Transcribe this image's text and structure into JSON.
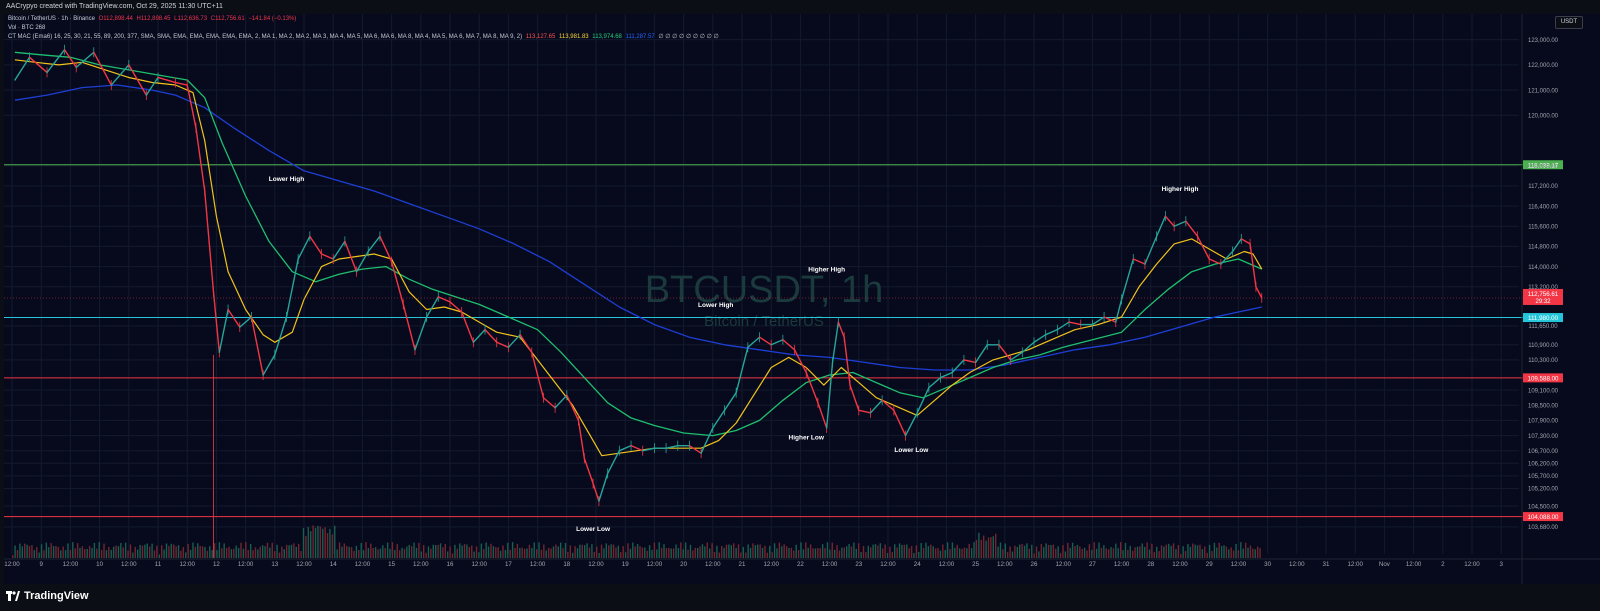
{
  "header": {
    "created_text": "AACrypyo created with TradingView.com, Oct 29, 2025 11:30 UTC+11"
  },
  "legend": {
    "symbol": "Bitcoin / TetherUS · 1h · Binance",
    "open": "O112,898.44",
    "high": "H112,898.45",
    "low": "L112,636.73",
    "close": "C112,756.61",
    "change": "−141.84 (−0.13%)",
    "vol": "Vol · BTC 268",
    "indicator": "CT MAC (Ema6) 16, 25, 30, 21, 55, 89, 200, 377, SMA, SMA, EMA, EMA, EMA, EMA, EMA, 2, MA 1, MA 2, MA 2, MA 3, MA 4, MA 5, MA 6, MA 6, MA 8, MA 4, MA 5, MA 6, MA 7, MA 8, MA 9, 2)",
    "ind_values": [
      "113,127.65",
      "113,981.83",
      "113,974.68",
      "111,287.57"
    ],
    "ind_colors": [
      "#ff5252",
      "#fdd835",
      "#26d07c",
      "#2962ff"
    ],
    "ind_empty": "∅ ∅ ∅ ∅ ∅ ∅ ∅ ∅ ∅"
  },
  "currency_button": "USDT",
  "watermark": {
    "title": "BTCUSDT, 1h",
    "subtitle": "Bitcoin / TetherUS"
  },
  "brand": "TradingView",
  "chart_data": {
    "type": "line",
    "y_axis_ticks": [
      "123,000.00",
      "122,000.00",
      "121,000.00",
      "120,000.00",
      "118,000.00",
      "117,200.00",
      "116,400.00",
      "115,600.00",
      "114,800.00",
      "114,000.00",
      "113,200.00",
      "111,650.00",
      "110,900.00",
      "110,300.00",
      "109,100.00",
      "108,500.00",
      "107,900.00",
      "107,300.00",
      "106,700.00",
      "106,200.00",
      "105,700.00",
      "105,200.00",
      "104,500.00",
      "103,680.00"
    ],
    "y_axis_values": [
      123000,
      122000,
      121000,
      120000,
      118000,
      117200,
      116400,
      115600,
      114800,
      114000,
      113200,
      111650,
      110900,
      110300,
      109100,
      108500,
      107900,
      107300,
      106700,
      106200,
      105700,
      105200,
      104500,
      103680
    ],
    "ylim": [
      103000,
      123700
    ],
    "x_axis_labels": [
      "12:00",
      "9",
      "12:00",
      "10",
      "12:00",
      "11",
      "12:00",
      "12",
      "12:00",
      "13",
      "12:00",
      "14",
      "12:00",
      "15",
      "12:00",
      "16",
      "12:00",
      "17",
      "12:00",
      "18",
      "12:00",
      "19",
      "12:00",
      "20",
      "12:00",
      "21",
      "12:00",
      "22",
      "12:00",
      "23",
      "12:00",
      "24",
      "12:00",
      "25",
      "12:00",
      "26",
      "12:00",
      "27",
      "12:00",
      "28",
      "12:00",
      "29",
      "12:00",
      "30",
      "12:00",
      "31",
      "12:00",
      "Nov",
      "12:00",
      "2",
      "12:00",
      "3"
    ],
    "x_range_days": [
      8.0,
      3.5
    ],
    "horizontal_levels": [
      {
        "value": 118039.17,
        "label": "118,039.17",
        "color": "#4caf50"
      },
      {
        "value": 111980.0,
        "label": "111,980.00",
        "color": "#26c6da"
      },
      {
        "value": 109588.0,
        "label": "109,588.00",
        "color": "#f23645"
      },
      {
        "value": 104088.0,
        "label": "104,088.00",
        "color": "#f23645"
      }
    ],
    "last_price": {
      "value": 112756.61,
      "label": "112,756.61",
      "countdown": "29:32",
      "color": "#f23645"
    },
    "price_path": [
      [
        8.05,
        121400
      ],
      [
        8.3,
        122300
      ],
      [
        8.6,
        121700
      ],
      [
        8.9,
        122600
      ],
      [
        9.1,
        121900
      ],
      [
        9.4,
        122500
      ],
      [
        9.7,
        121200
      ],
      [
        10.0,
        122000
      ],
      [
        10.3,
        120800
      ],
      [
        10.5,
        121500
      ],
      [
        10.8,
        121300
      ],
      [
        11.0,
        121200
      ],
      [
        11.15,
        119500
      ],
      [
        11.3,
        117000
      ],
      [
        11.45,
        113000
      ],
      [
        11.55,
        110600
      ],
      [
        11.7,
        112300
      ],
      [
        11.9,
        111600
      ],
      [
        12.1,
        112000
      ],
      [
        12.3,
        109700
      ],
      [
        12.5,
        110500
      ],
      [
        12.7,
        112000
      ],
      [
        12.9,
        114300
      ],
      [
        13.1,
        115200
      ],
      [
        13.3,
        114500
      ],
      [
        13.5,
        114300
      ],
      [
        13.7,
        115000
      ],
      [
        13.9,
        113800
      ],
      [
        14.1,
        114600
      ],
      [
        14.3,
        115200
      ],
      [
        14.5,
        114200
      ],
      [
        14.7,
        112500
      ],
      [
        14.9,
        110700
      ],
      [
        15.1,
        112000
      ],
      [
        15.3,
        112800
      ],
      [
        15.5,
        112600
      ],
      [
        15.7,
        112200
      ],
      [
        15.9,
        111000
      ],
      [
        16.1,
        111500
      ],
      [
        16.3,
        111000
      ],
      [
        16.5,
        110800
      ],
      [
        16.7,
        111300
      ],
      [
        16.9,
        110600
      ],
      [
        17.1,
        108800
      ],
      [
        17.3,
        108400
      ],
      [
        17.5,
        108900
      ],
      [
        17.7,
        107900
      ],
      [
        17.8,
        106400
      ],
      [
        17.95,
        105400
      ],
      [
        18.05,
        104700
      ],
      [
        18.2,
        105800
      ],
      [
        18.4,
        106700
      ],
      [
        18.6,
        106900
      ],
      [
        18.8,
        106700
      ],
      [
        19.0,
        106800
      ],
      [
        19.2,
        106800
      ],
      [
        19.4,
        106900
      ],
      [
        19.6,
        106900
      ],
      [
        19.8,
        106600
      ],
      [
        20.0,
        107600
      ],
      [
        20.2,
        108300
      ],
      [
        20.4,
        109000
      ],
      [
        20.6,
        110800
      ],
      [
        20.8,
        111200
      ],
      [
        21.0,
        110900
      ],
      [
        21.2,
        111100
      ],
      [
        21.4,
        110700
      ],
      [
        21.6,
        109800
      ],
      [
        21.8,
        108600
      ],
      [
        21.95,
        107600
      ],
      [
        22.05,
        110200
      ],
      [
        22.15,
        111800
      ],
      [
        22.25,
        111200
      ],
      [
        22.35,
        109300
      ],
      [
        22.5,
        108300
      ],
      [
        22.7,
        108200
      ],
      [
        22.9,
        108700
      ],
      [
        23.1,
        108300
      ],
      [
        23.3,
        107300
      ],
      [
        23.5,
        108200
      ],
      [
        23.7,
        109200
      ],
      [
        23.9,
        109600
      ],
      [
        24.1,
        109800
      ],
      [
        24.3,
        110300
      ],
      [
        24.5,
        110200
      ],
      [
        24.7,
        110900
      ],
      [
        24.9,
        110900
      ],
      [
        25.1,
        110300
      ],
      [
        25.3,
        110600
      ],
      [
        25.5,
        111000
      ],
      [
        25.7,
        111300
      ],
      [
        25.9,
        111500
      ],
      [
        26.1,
        111800
      ],
      [
        26.3,
        111700
      ],
      [
        26.5,
        111700
      ],
      [
        26.7,
        112000
      ],
      [
        26.9,
        111800
      ],
      [
        27.0,
        112700
      ],
      [
        27.2,
        114300
      ],
      [
        27.4,
        114100
      ],
      [
        27.6,
        115200
      ],
      [
        27.75,
        116000
      ],
      [
        27.9,
        115600
      ],
      [
        28.1,
        115800
      ],
      [
        28.3,
        115200
      ],
      [
        28.5,
        114300
      ],
      [
        28.7,
        114100
      ],
      [
        28.9,
        114600
      ],
      [
        29.05,
        115100
      ],
      [
        29.2,
        114900
      ],
      [
        29.3,
        113200
      ],
      [
        29.4,
        112760
      ]
    ],
    "ema_fast_path": [
      [
        8.05,
        122200
      ],
      [
        8.4,
        122100
      ],
      [
        8.8,
        122000
      ],
      [
        9.2,
        122100
      ],
      [
        9.6,
        121800
      ],
      [
        10.0,
        121500
      ],
      [
        10.4,
        121300
      ],
      [
        10.8,
        121200
      ],
      [
        11.1,
        120900
      ],
      [
        11.3,
        119000
      ],
      [
        11.5,
        116000
      ],
      [
        11.7,
        113800
      ],
      [
        12.0,
        112300
      ],
      [
        12.3,
        111300
      ],
      [
        12.5,
        111000
      ],
      [
        12.8,
        111400
      ],
      [
        13.0,
        112700
      ],
      [
        13.3,
        114000
      ],
      [
        13.6,
        114300
      ],
      [
        13.9,
        114400
      ],
      [
        14.2,
        114500
      ],
      [
        14.5,
        114300
      ],
      [
        14.8,
        113000
      ],
      [
        15.1,
        112300
      ],
      [
        15.4,
        112400
      ],
      [
        15.7,
        112200
      ],
      [
        16.0,
        111800
      ],
      [
        16.3,
        111400
      ],
      [
        16.7,
        111200
      ],
      [
        17.0,
        110300
      ],
      [
        17.3,
        109400
      ],
      [
        17.6,
        108500
      ],
      [
        17.9,
        107300
      ],
      [
        18.1,
        106500
      ],
      [
        18.4,
        106600
      ],
      [
        18.7,
        106700
      ],
      [
        19.0,
        106800
      ],
      [
        19.4,
        106800
      ],
      [
        19.8,
        106800
      ],
      [
        20.1,
        107100
      ],
      [
        20.4,
        107800
      ],
      [
        20.7,
        108900
      ],
      [
        21.0,
        110000
      ],
      [
        21.3,
        110400
      ],
      [
        21.6,
        110000
      ],
      [
        21.9,
        109300
      ],
      [
        22.2,
        110000
      ],
      [
        22.5,
        109400
      ],
      [
        22.8,
        108800
      ],
      [
        23.2,
        108400
      ],
      [
        23.5,
        108100
      ],
      [
        23.8,
        108700
      ],
      [
        24.1,
        109300
      ],
      [
        24.4,
        109800
      ],
      [
        24.8,
        110300
      ],
      [
        25.1,
        110500
      ],
      [
        25.4,
        110700
      ],
      [
        25.8,
        111100
      ],
      [
        26.2,
        111500
      ],
      [
        26.6,
        111700
      ],
      [
        27.0,
        112000
      ],
      [
        27.3,
        113200
      ],
      [
        27.6,
        114100
      ],
      [
        27.9,
        114900
      ],
      [
        28.2,
        115100
      ],
      [
        28.5,
        114700
      ],
      [
        28.8,
        114300
      ],
      [
        29.1,
        114600
      ],
      [
        29.25,
        114500
      ],
      [
        29.4,
        113900
      ]
    ],
    "ema_mid_path": [
      [
        8.05,
        122500
      ],
      [
        8.5,
        122400
      ],
      [
        9.0,
        122300
      ],
      [
        9.5,
        122000
      ],
      [
        10.0,
        121800
      ],
      [
        10.5,
        121600
      ],
      [
        11.0,
        121400
      ],
      [
        11.3,
        120700
      ],
      [
        11.6,
        118900
      ],
      [
        12.0,
        116800
      ],
      [
        12.4,
        115000
      ],
      [
        12.8,
        113800
      ],
      [
        13.2,
        113400
      ],
      [
        13.6,
        113700
      ],
      [
        14.0,
        113900
      ],
      [
        14.4,
        114000
      ],
      [
        14.8,
        113500
      ],
      [
        15.2,
        113100
      ],
      [
        15.6,
        112800
      ],
      [
        16.0,
        112500
      ],
      [
        16.5,
        112000
      ],
      [
        17.0,
        111500
      ],
      [
        17.4,
        110600
      ],
      [
        17.8,
        109600
      ],
      [
        18.2,
        108600
      ],
      [
        18.6,
        108000
      ],
      [
        19.0,
        107700
      ],
      [
        19.5,
        107400
      ],
      [
        20.0,
        107300
      ],
      [
        20.4,
        107500
      ],
      [
        20.8,
        107900
      ],
      [
        21.2,
        108700
      ],
      [
        21.6,
        109400
      ],
      [
        22.0,
        109700
      ],
      [
        22.4,
        109800
      ],
      [
        22.8,
        109400
      ],
      [
        23.2,
        109000
      ],
      [
        23.6,
        108800
      ],
      [
        24.0,
        109200
      ],
      [
        24.4,
        109600
      ],
      [
        24.8,
        110000
      ],
      [
        25.2,
        110300
      ],
      [
        25.6,
        110500
      ],
      [
        26.0,
        110800
      ],
      [
        26.5,
        111100
      ],
      [
        27.0,
        111400
      ],
      [
        27.4,
        112300
      ],
      [
        27.8,
        113100
      ],
      [
        28.2,
        113800
      ],
      [
        28.6,
        114100
      ],
      [
        29.0,
        114300
      ],
      [
        29.4,
        113900
      ]
    ],
    "ema_slow_path": [
      [
        8.05,
        120600
      ],
      [
        8.6,
        120800
      ],
      [
        9.2,
        121100
      ],
      [
        9.8,
        121200
      ],
      [
        10.4,
        121000
      ],
      [
        10.8,
        120800
      ],
      [
        11.3,
        120300
      ],
      [
        11.8,
        119500
      ],
      [
        12.4,
        118600
      ],
      [
        13.0,
        117800
      ],
      [
        13.6,
        117400
      ],
      [
        14.2,
        117000
      ],
      [
        14.8,
        116500
      ],
      [
        15.4,
        116000
      ],
      [
        16.0,
        115500
      ],
      [
        16.6,
        114900
      ],
      [
        17.2,
        114200
      ],
      [
        17.8,
        113300
      ],
      [
        18.4,
        112400
      ],
      [
        19.0,
        111700
      ],
      [
        19.6,
        111200
      ],
      [
        20.2,
        110900
      ],
      [
        20.8,
        110700
      ],
      [
        21.4,
        110500
      ],
      [
        22.0,
        110400
      ],
      [
        22.6,
        110200
      ],
      [
        23.2,
        110000
      ],
      [
        23.8,
        109900
      ],
      [
        24.4,
        109900
      ],
      [
        25.0,
        110100
      ],
      [
        25.6,
        110400
      ],
      [
        26.2,
        110700
      ],
      [
        26.8,
        110900
      ],
      [
        27.4,
        111200
      ],
      [
        28.0,
        111600
      ],
      [
        28.6,
        112000
      ],
      [
        29.0,
        112200
      ],
      [
        29.4,
        112400
      ]
    ],
    "annotations": [
      {
        "text": "Lower High",
        "x": 12.7,
        "y": 117400
      },
      {
        "text": "Higher High",
        "x": 21.95,
        "y": 113800
      },
      {
        "text": "Lower High",
        "x": 20.05,
        "y": 112400
      },
      {
        "text": "Higher Low",
        "x": 21.6,
        "y": 107150
      },
      {
        "text": "Lower Low",
        "x": 23.4,
        "y": 106650
      },
      {
        "text": "Higher High",
        "x": 28.0,
        "y": 117000
      },
      {
        "text": "Lower Low",
        "x": 17.95,
        "y": 103520
      }
    ],
    "grid": true
  }
}
